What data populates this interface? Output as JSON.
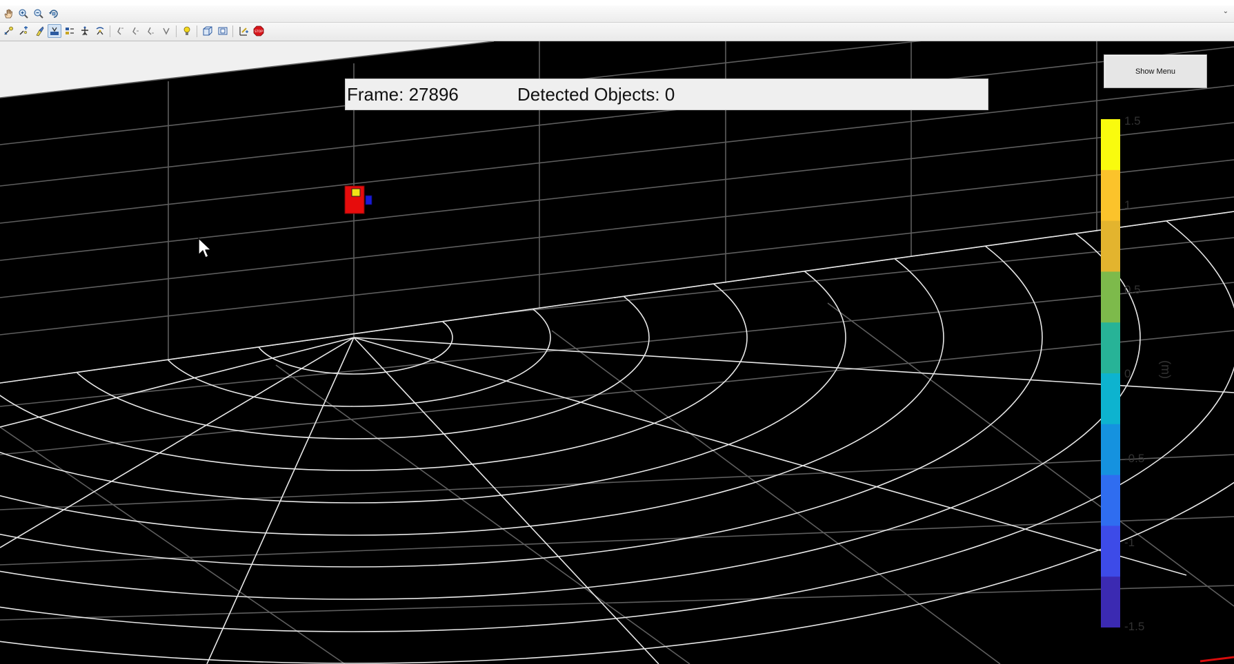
{
  "toolbar1": {
    "icons": [
      "pan-hand-icon",
      "zoom-in-icon",
      "zoom-out-icon",
      "rotate-3d-icon"
    ],
    "expand_glyph": "⌄"
  },
  "toolbar2": {
    "icons": [
      "select-tool-icon",
      "data-cursor-icon",
      "brush-icon",
      "plot-view-icon",
      "insert-legend-icon",
      "insert-colorbar-icon",
      "link-plot-icon",
      "back-icon",
      "forward-icon",
      "history-icon",
      "undo-icon",
      "light-bulb-icon",
      "camera-3d-icon",
      "box-view-icon",
      "tools-edit-icon",
      "stop-icon"
    ]
  },
  "info": {
    "frame_label": "Frame: 27896",
    "objects_label": "Detected Objects: 0"
  },
  "menu_button": {
    "label": "Show Menu"
  },
  "colorbar": {
    "ticks": [
      "1.5",
      "1",
      "0.5",
      "0",
      "-0.5",
      "-1",
      "-1.5"
    ],
    "label": "(m)",
    "colors": [
      "#f9fb0e",
      "#fbc32b",
      "#e3b42e",
      "#7dba4b",
      "#27b397",
      "#0db3cf",
      "#1592df",
      "#2f6df0",
      "#3d4be8",
      "#3b2ab2"
    ]
  },
  "scene": {
    "background": "#000000",
    "grid_color": "#ffffff",
    "sensor_body_color": "#e60c0c",
    "sensor_face_color": "#f2e316",
    "sensor_side_color": "#1a1ad6"
  }
}
